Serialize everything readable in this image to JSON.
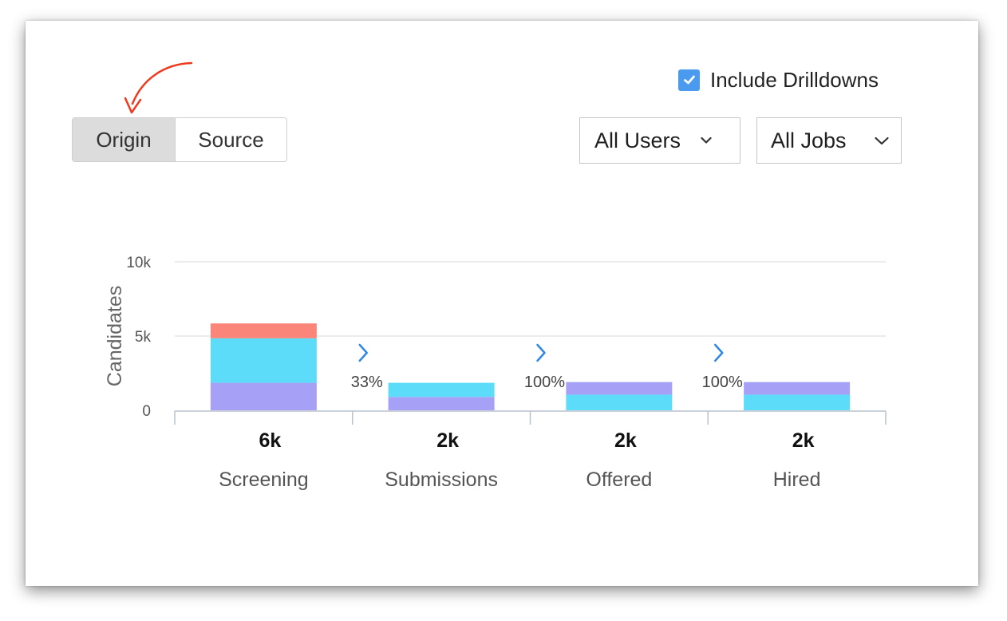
{
  "controls": {
    "include_drilldowns": {
      "label": "Include Drilldowns",
      "checked": true,
      "color": "#4a9bf0"
    },
    "view_toggle": {
      "options": [
        "Origin",
        "Source"
      ],
      "selected": "Origin"
    },
    "users_dropdown": {
      "value": "All Users",
      "icon": "chevron-down-icon"
    },
    "jobs_dropdown": {
      "value": "All Jobs",
      "icon": "chevron-down-icon"
    }
  },
  "annotation": {
    "icon": "curved-arrow-icon",
    "color": "#ee3b1f"
  },
  "chart_data": {
    "type": "bar",
    "stacked": true,
    "title": "",
    "xlabel": "",
    "ylabel": "Candidates",
    "ylim": [
      0,
      10000
    ],
    "yticks": [
      {
        "value": 0,
        "label": "0"
      },
      {
        "value": 5000,
        "label": "5k"
      },
      {
        "value": 10000,
        "label": "10k"
      }
    ],
    "grid": true,
    "categories": [
      "Screening",
      "Submissions",
      "Offered",
      "Hired"
    ],
    "totals": [
      "6k",
      "2k",
      "2k",
      "2k"
    ],
    "conversion_rates": [
      "33%",
      "100%",
      "100%"
    ],
    "stack_color_order": [
      "#a6a1f7",
      "#5cdcf9",
      "#fc8579"
    ],
    "bars": [
      {
        "category": "Screening",
        "segments": [
          {
            "color": "#a6a1f7",
            "value": 1850
          },
          {
            "color": "#5cdcf9",
            "value": 3000
          },
          {
            "color": "#fc8579",
            "value": 1000
          }
        ]
      },
      {
        "category": "Submissions",
        "segments": [
          {
            "color": "#a6a1f7",
            "value": 900
          },
          {
            "color": "#5cdcf9",
            "value": 950
          }
        ]
      },
      {
        "category": "Offered",
        "segments": [
          {
            "color": "#5cdcf9",
            "value": 1050
          },
          {
            "color": "#a6a1f7",
            "value": 850
          }
        ]
      },
      {
        "category": "Hired",
        "segments": [
          {
            "color": "#5cdcf9",
            "value": 1050
          },
          {
            "color": "#a6a1f7",
            "value": 850
          }
        ]
      }
    ]
  }
}
